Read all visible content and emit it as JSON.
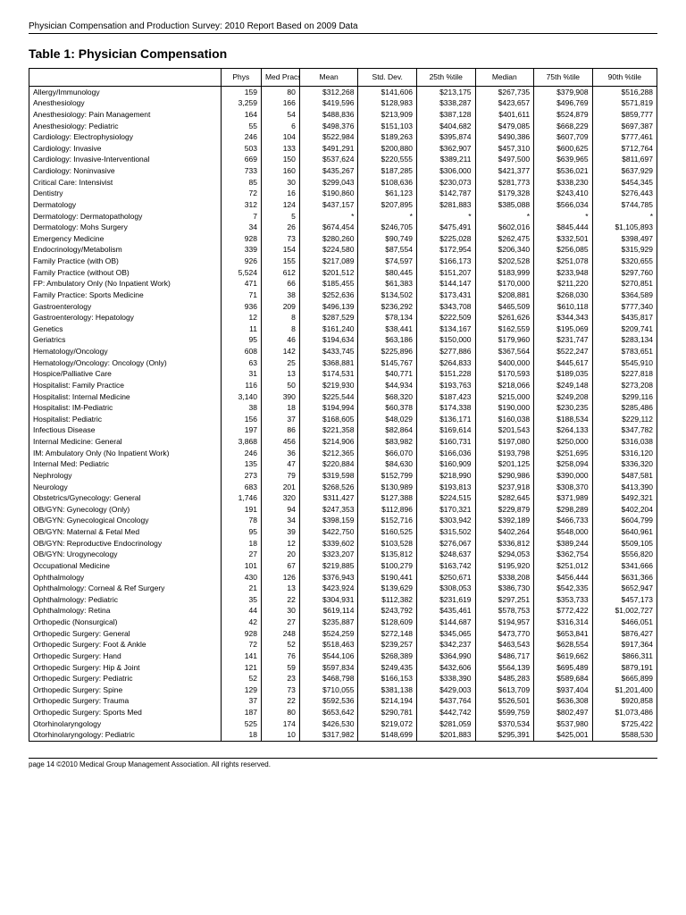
{
  "header": "Physician Compensation and Production Survey: 2010 Report Based on 2009 Data",
  "title": "Table 1: Physician Compensation",
  "columns": [
    "",
    "Phys",
    "Med Pracs",
    "Mean",
    "Std. Dev.",
    "25th %tile",
    "Median",
    "75th %tile",
    "90th %tile"
  ],
  "rows": [
    [
      "Allergy/Immunology",
      "159",
      "80",
      "$312,268",
      "$141,606",
      "$213,175",
      "$267,735",
      "$379,908",
      "$516,288"
    ],
    [
      "Anesthesiology",
      "3,259",
      "166",
      "$419,596",
      "$128,983",
      "$338,287",
      "$423,657",
      "$496,769",
      "$571,819"
    ],
    [
      "Anesthesiology: Pain Management",
      "164",
      "54",
      "$488,836",
      "$213,909",
      "$387,128",
      "$401,611",
      "$524,879",
      "$859,777"
    ],
    [
      "Anesthesiology: Pediatric",
      "55",
      "6",
      "$498,376",
      "$151,103",
      "$404,682",
      "$479,085",
      "$668,229",
      "$697,387"
    ],
    [
      "Cardiology: Electrophysiology",
      "246",
      "104",
      "$522,984",
      "$189,263",
      "$395,874",
      "$490,386",
      "$607,709",
      "$777,461"
    ],
    [
      "Cardiology: Invasive",
      "503",
      "133",
      "$491,291",
      "$200,880",
      "$362,907",
      "$457,310",
      "$600,625",
      "$712,764"
    ],
    [
      "Cardiology: Invasive-Interventional",
      "669",
      "150",
      "$537,624",
      "$220,555",
      "$389,211",
      "$497,500",
      "$639,965",
      "$811,697"
    ],
    [
      "Cardiology: Noninvasive",
      "733",
      "160",
      "$435,267",
      "$187,285",
      "$306,000",
      "$421,377",
      "$536,021",
      "$637,929"
    ],
    [
      "Critical Care: Intensivist",
      "85",
      "30",
      "$299,043",
      "$108,636",
      "$230,073",
      "$281,773",
      "$338,230",
      "$454,345"
    ],
    [
      "Dentistry",
      "72",
      "16",
      "$190,860",
      "$61,123",
      "$142,787",
      "$179,328",
      "$243,410",
      "$276,443"
    ],
    [
      "Dermatology",
      "312",
      "124",
      "$437,157",
      "$207,895",
      "$281,883",
      "$385,088",
      "$566,034",
      "$744,785"
    ],
    [
      "Dermatology: Dermatopathology",
      "7",
      "5",
      "*",
      "*",
      "*",
      "*",
      "*",
      "*"
    ],
    [
      "Dermatology: Mohs Surgery",
      "34",
      "26",
      "$674,454",
      "$246,705",
      "$475,491",
      "$602,016",
      "$845,444",
      "$1,105,893"
    ],
    [
      "Emergency Medicine",
      "928",
      "73",
      "$280,260",
      "$90,749",
      "$225,028",
      "$262,475",
      "$332,501",
      "$398,497"
    ],
    [
      "Endocrinology/Metabolism",
      "339",
      "154",
      "$224,580",
      "$87,554",
      "$172,954",
      "$206,340",
      "$256,085",
      "$315,929"
    ],
    [
      "Family Practice (with OB)",
      "926",
      "155",
      "$217,089",
      "$74,597",
      "$166,173",
      "$202,528",
      "$251,078",
      "$320,655"
    ],
    [
      "Family Practice (without OB)",
      "5,524",
      "612",
      "$201,512",
      "$80,445",
      "$151,207",
      "$183,999",
      "$233,948",
      "$297,760"
    ],
    [
      "FP: Ambulatory Only (No Inpatient Work)",
      "471",
      "66",
      "$185,455",
      "$61,383",
      "$144,147",
      "$170,000",
      "$211,220",
      "$270,851"
    ],
    [
      "Family Practice: Sports Medicine",
      "71",
      "38",
      "$252,636",
      "$134,502",
      "$173,431",
      "$208,881",
      "$268,030",
      "$364,589"
    ],
    [
      "Gastroenterology",
      "936",
      "209",
      "$496,139",
      "$236,292",
      "$343,708",
      "$465,509",
      "$610,118",
      "$777,340"
    ],
    [
      "Gastroenterology: Hepatology",
      "12",
      "8",
      "$287,529",
      "$78,134",
      "$222,509",
      "$261,626",
      "$344,343",
      "$435,817"
    ],
    [
      "Genetics",
      "11",
      "8",
      "$161,240",
      "$38,441",
      "$134,167",
      "$162,559",
      "$195,069",
      "$209,741"
    ],
    [
      "Geriatrics",
      "95",
      "46",
      "$194,634",
      "$63,186",
      "$150,000",
      "$179,960",
      "$231,747",
      "$283,134"
    ],
    [
      "Hematology/Oncology",
      "608",
      "142",
      "$433,745",
      "$225,896",
      "$277,886",
      "$367,564",
      "$522,247",
      "$783,651"
    ],
    [
      "Hematology/Oncology: Oncology (Only)",
      "63",
      "25",
      "$368,881",
      "$145,767",
      "$264,833",
      "$400,000",
      "$445,617",
      "$545,910"
    ],
    [
      "Hospice/Palliative Care",
      "31",
      "13",
      "$174,531",
      "$40,771",
      "$151,228",
      "$170,593",
      "$189,035",
      "$227,818"
    ],
    [
      "Hospitalist: Family Practice",
      "116",
      "50",
      "$219,930",
      "$44,934",
      "$193,763",
      "$218,066",
      "$249,148",
      "$273,208"
    ],
    [
      "Hospitalist: Internal Medicine",
      "3,140",
      "390",
      "$225,544",
      "$68,320",
      "$187,423",
      "$215,000",
      "$249,208",
      "$299,116"
    ],
    [
      "Hospitalist: IM-Pediatric",
      "38",
      "18",
      "$194,994",
      "$60,378",
      "$174,338",
      "$190,000",
      "$230,235",
      "$285,486"
    ],
    [
      "Hospitalist: Pediatric",
      "156",
      "37",
      "$168,605",
      "$48,029",
      "$136,171",
      "$160,038",
      "$188,534",
      "$229,112"
    ],
    [
      "Infectious Disease",
      "197",
      "86",
      "$221,358",
      "$82,864",
      "$169,614",
      "$201,543",
      "$264,133",
      "$347,782"
    ],
    [
      "Internal Medicine: General",
      "3,868",
      "456",
      "$214,906",
      "$83,982",
      "$160,731",
      "$197,080",
      "$250,000",
      "$316,038"
    ],
    [
      "IM: Ambulatory Only (No Inpatient Work)",
      "246",
      "36",
      "$212,365",
      "$66,070",
      "$166,036",
      "$193,798",
      "$251,695",
      "$316,120"
    ],
    [
      "Internal Med: Pediatric",
      "135",
      "47",
      "$220,884",
      "$84,630",
      "$160,909",
      "$201,125",
      "$258,094",
      "$336,320"
    ],
    [
      "Nephrology",
      "273",
      "79",
      "$319,598",
      "$152,799",
      "$218,990",
      "$290,986",
      "$390,000",
      "$487,581"
    ],
    [
      "Neurology",
      "683",
      "201",
      "$268,526",
      "$130,989",
      "$193,813",
      "$237,918",
      "$308,370",
      "$413,390"
    ],
    [
      "Obstetrics/Gynecology: General",
      "1,746",
      "320",
      "$311,427",
      "$127,388",
      "$224,515",
      "$282,645",
      "$371,989",
      "$492,321"
    ],
    [
      "OB/GYN: Gynecology (Only)",
      "191",
      "94",
      "$247,353",
      "$112,896",
      "$170,321",
      "$229,879",
      "$298,289",
      "$402,204"
    ],
    [
      "OB/GYN: Gynecological Oncology",
      "78",
      "34",
      "$398,159",
      "$152,716",
      "$303,942",
      "$392,189",
      "$466,733",
      "$604,799"
    ],
    [
      "OB/GYN: Maternal & Fetal Med",
      "95",
      "39",
      "$422,750",
      "$160,525",
      "$315,502",
      "$402,264",
      "$548,000",
      "$640,961"
    ],
    [
      "OB/GYN: Reproductive Endocrinology",
      "18",
      "12",
      "$339,602",
      "$103,528",
      "$276,067",
      "$336,812",
      "$389,244",
      "$509,105"
    ],
    [
      "OB/GYN: Urogynecology",
      "27",
      "20",
      "$323,207",
      "$135,812",
      "$248,637",
      "$294,053",
      "$362,754",
      "$556,820"
    ],
    [
      "Occupational Medicine",
      "101",
      "67",
      "$219,885",
      "$100,279",
      "$163,742",
      "$195,920",
      "$251,012",
      "$341,666"
    ],
    [
      "Ophthalmology",
      "430",
      "126",
      "$376,943",
      "$190,441",
      "$250,671",
      "$338,208",
      "$456,444",
      "$631,366"
    ],
    [
      "Ophthalmology: Corneal & Ref Surgery",
      "21",
      "13",
      "$423,924",
      "$139,629",
      "$308,053",
      "$386,730",
      "$542,335",
      "$652,947"
    ],
    [
      "Ophthalmology: Pediatric",
      "35",
      "22",
      "$304,931",
      "$112,382",
      "$231,619",
      "$297,251",
      "$353,733",
      "$457,173"
    ],
    [
      "Ophthalmology: Retina",
      "44",
      "30",
      "$619,114",
      "$243,792",
      "$435,461",
      "$578,753",
      "$772,422",
      "$1,002,727"
    ],
    [
      "Orthopedic (Nonsurgical)",
      "42",
      "27",
      "$235,887",
      "$128,609",
      "$144,687",
      "$194,957",
      "$316,314",
      "$466,051"
    ],
    [
      "Orthopedic Surgery: General",
      "928",
      "248",
      "$524,259",
      "$272,148",
      "$345,065",
      "$473,770",
      "$653,841",
      "$876,427"
    ],
    [
      "Orthopedic Surgery: Foot & Ankle",
      "72",
      "52",
      "$518,463",
      "$239,257",
      "$342,237",
      "$463,543",
      "$628,554",
      "$917,364"
    ],
    [
      "Orthopedic Surgery: Hand",
      "141",
      "76",
      "$544,106",
      "$268,389",
      "$364,990",
      "$486,717",
      "$619,662",
      "$866,311"
    ],
    [
      "Orthopedic Surgery: Hip & Joint",
      "121",
      "59",
      "$597,834",
      "$249,435",
      "$432,606",
      "$564,139",
      "$695,489",
      "$879,191"
    ],
    [
      "Orthopedic Surgery: Pediatric",
      "52",
      "23",
      "$468,798",
      "$166,153",
      "$338,390",
      "$485,283",
      "$589,684",
      "$665,899"
    ],
    [
      "Orthopedic Surgery: Spine",
      "129",
      "73",
      "$710,055",
      "$381,138",
      "$429,003",
      "$613,709",
      "$937,404",
      "$1,201,400"
    ],
    [
      "Orthopedic Surgery: Trauma",
      "37",
      "22",
      "$592,536",
      "$214,194",
      "$437,764",
      "$526,501",
      "$636,308",
      "$920,858"
    ],
    [
      "Orthopedic Surgery: Sports Med",
      "187",
      "80",
      "$653,642",
      "$290,781",
      "$442,742",
      "$599,759",
      "$802,497",
      "$1,073,486"
    ],
    [
      "Otorhinolaryngology",
      "525",
      "174",
      "$426,530",
      "$219,072",
      "$281,059",
      "$370,534",
      "$537,980",
      "$725,422"
    ],
    [
      "Otorhinolaryngology: Pediatric",
      "18",
      "10",
      "$317,982",
      "$148,699",
      "$201,883",
      "$295,391",
      "$425,001",
      "$588,530"
    ]
  ],
  "footer": "page 14 ©2010 Medical Group Management Association. All rights reserved."
}
